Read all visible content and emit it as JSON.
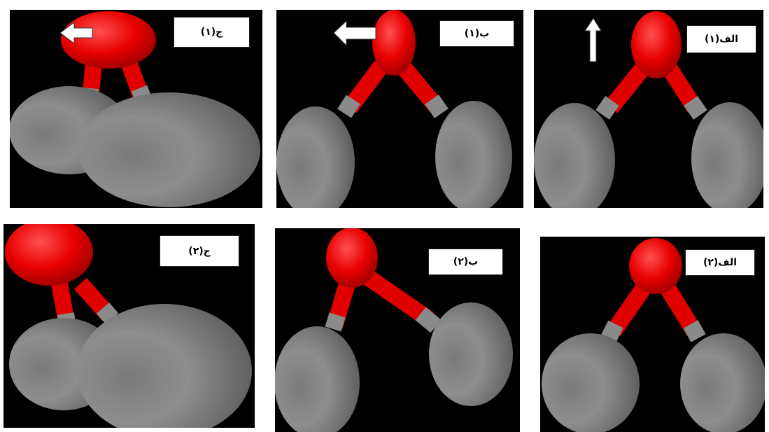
{
  "panels": {
    "c1": {
      "label": "ج(۱)"
    },
    "b1": {
      "label": "ب(۱)"
    },
    "a1": {
      "label": "الف(۱)"
    },
    "c2": {
      "label": "ج(۲)"
    },
    "b2": {
      "label": "ب(۲)"
    },
    "a2": {
      "label": "الف(۲)"
    }
  },
  "colors": {
    "background": "#000000",
    "oxygen": "#ff1a1a",
    "hydrogen": "#8a8a8a",
    "arrow": "#ffffff"
  }
}
